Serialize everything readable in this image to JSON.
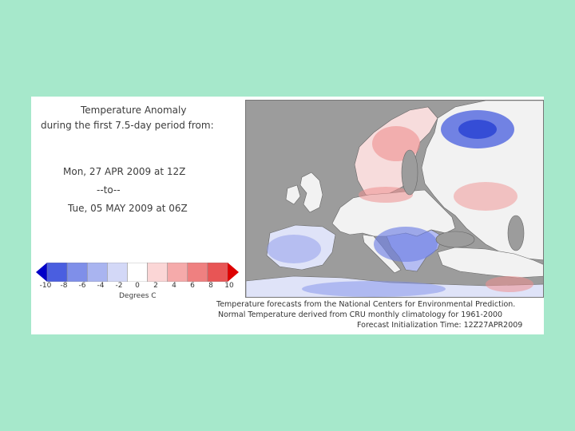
{
  "title": {
    "line1": "Temperature Anomaly",
    "line2": "during the first 7.5-day period from:"
  },
  "period": {
    "start": "Mon, 27 APR 2009 at 12Z",
    "to": "--to--",
    "end": "Tue, 05 MAY 2009 at 06Z"
  },
  "scale": {
    "ticks": [
      "-10",
      "-8",
      "-6",
      "-4",
      "-2",
      "0",
      "2",
      "4",
      "6",
      "8",
      "10"
    ],
    "unit": "Degrees C",
    "colors": [
      "#1a2fd0",
      "#4a5ee0",
      "#7f8fe9",
      "#a9b4f0",
      "#d3d8f7",
      "#ffffff",
      "#fbd6d6",
      "#f5aaaa",
      "#ef8080",
      "#e85555",
      "#e02020"
    ]
  },
  "map": {
    "land_color": "#f2f2f2",
    "sea_color": "#9c9c9c",
    "cold_color": "#5a6fe0",
    "warm_color": "#ef8f8f"
  },
  "credits": {
    "line1": "Temperature forecasts from the National Centers for Environmental Prediction.",
    "line2": "Normal Temperature derived from CRU monthly climatology for 1961-2000",
    "line3": "Forecast Initialization Time: 12Z27APR2009"
  }
}
